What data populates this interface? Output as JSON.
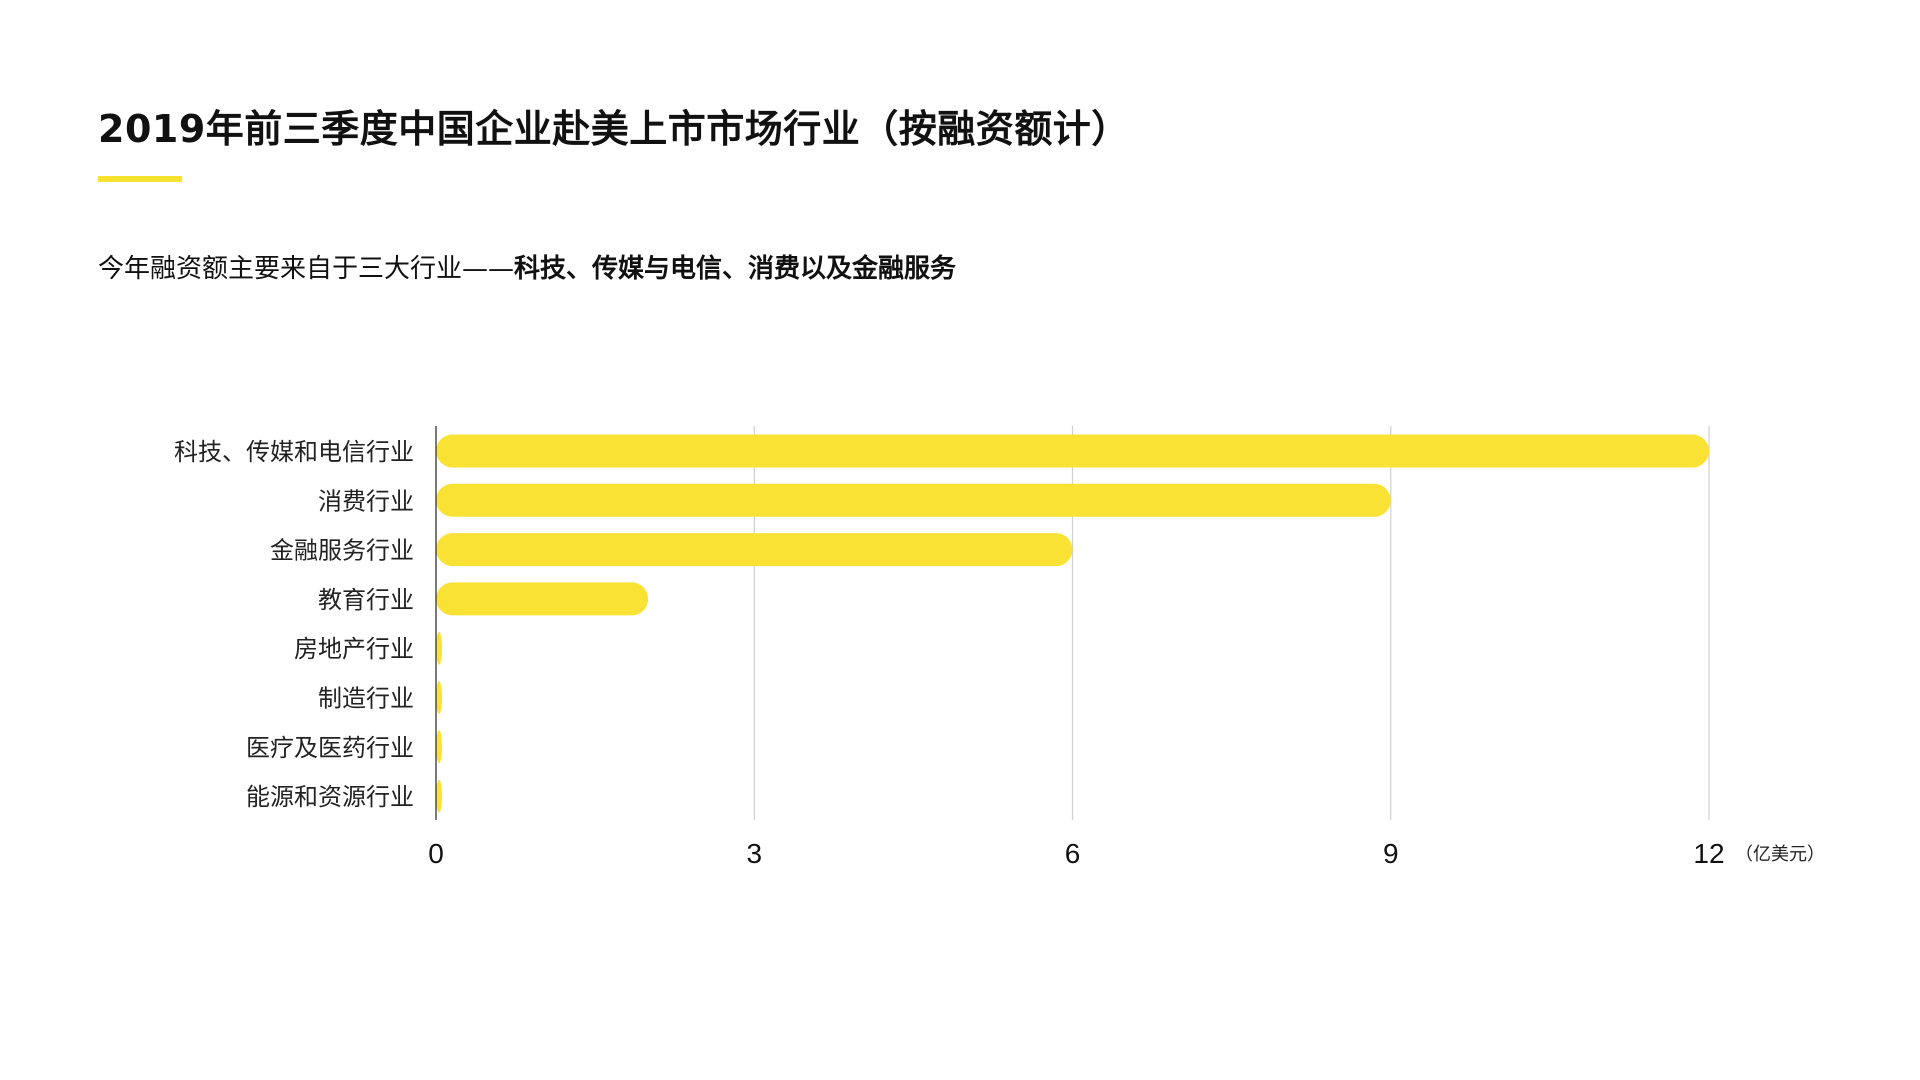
{
  "title": "2019年前三季度中国企业赴美上市市场行业（按融资额计）",
  "subtitle": {
    "normal": "今年融资额主要来自于三大行业——",
    "bold": "科技、传媒与电信、消费以及金融服务"
  },
  "colors": {
    "accent": "#f9e22f",
    "bar": "#f9e233",
    "grid": "#d0d0d0",
    "axis": "#333333",
    "text": "#111111"
  },
  "chart_data": {
    "type": "bar",
    "orientation": "horizontal",
    "categories": [
      "科技、传媒和电信行业",
      "消费行业",
      "金融服务行业",
      "教育行业",
      "房地产行业",
      "制造行业",
      "医疗及医药行业",
      "能源和资源行业"
    ],
    "values": [
      12,
      9,
      6,
      2,
      0,
      0,
      0,
      0
    ],
    "xlim": [
      0,
      12
    ],
    "xticks": [
      0,
      3,
      6,
      9,
      12
    ],
    "unit": "（亿美元）",
    "grid": true
  }
}
